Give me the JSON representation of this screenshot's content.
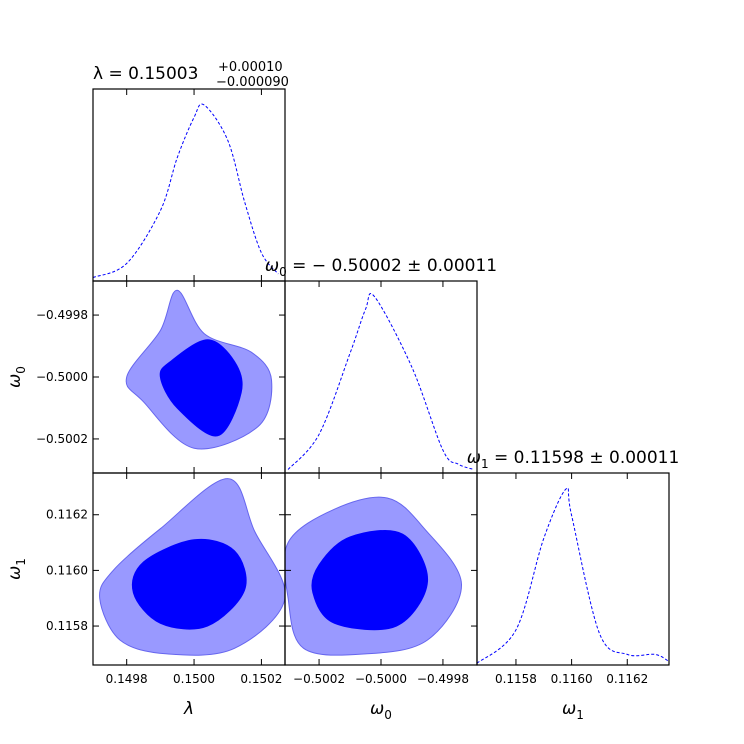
{
  "chart_data": {
    "type": "corner",
    "parameters": [
      {
        "symbol": "λ",
        "tick_labels": [
          "0.1498",
          "0.1500",
          "0.1502"
        ],
        "tick_values": [
          0.1498,
          0.15,
          0.1502
        ],
        "range": [
          0.1497,
          0.15027
        ]
      },
      {
        "symbol": "ω",
        "subscript": "0",
        "tick_labels": [
          "−0.5002",
          "−0.5000",
          "−0.4998"
        ],
        "tick_values": [
          -0.5002,
          -0.5,
          -0.4998
        ],
        "range": [
          -0.50031,
          -0.49969
        ]
      },
      {
        "symbol": "ω",
        "subscript": "1",
        "tick_labels": [
          "0.1158",
          "0.1160",
          "0.1162"
        ],
        "tick_values": [
          0.1158,
          0.116,
          0.1162
        ],
        "range": [
          0.11566,
          0.11635
        ]
      }
    ],
    "titles": [
      {
        "prefix": "λ = 0.15003",
        "sup": "+0.00010",
        "sub": "−0.000090"
      },
      {
        "prefix_symbol": "ω",
        "prefix_sub": "0",
        "text": " = − 0.50002 ± 0.00011"
      },
      {
        "prefix_symbol": "ω",
        "prefix_sub": "1",
        "text": " = 0.11598 ± 0.00011"
      }
    ],
    "marginals": [
      {
        "param": 0,
        "x": [
          0.1497,
          0.1498,
          0.1499,
          0.14995,
          0.15,
          0.15003,
          0.1501,
          0.15015,
          0.1502,
          0.15025
        ],
        "density": [
          0.02,
          0.1,
          0.4,
          0.7,
          0.93,
          1.0,
          0.8,
          0.45,
          0.16,
          0.04
        ]
      },
      {
        "param": 1,
        "x": [
          -0.5003,
          -0.5002,
          -0.5001,
          -0.50005,
          -0.50002,
          -0.4999,
          -0.4998,
          -0.49975,
          -0.4997
        ],
        "density": [
          0.02,
          0.22,
          0.68,
          0.93,
          1.0,
          0.6,
          0.13,
          0.05,
          0.02
        ]
      },
      {
        "param": 2,
        "x": [
          0.11566,
          0.1158,
          0.1159,
          0.11598,
          0.116,
          0.1161,
          0.1162,
          0.1163,
          0.11635
        ],
        "density": [
          0.01,
          0.2,
          0.72,
          1.0,
          0.85,
          0.18,
          0.06,
          0.06,
          0.02
        ]
      }
    ],
    "contours": [
      {
        "x": 0,
        "y": 1,
        "outer": [
          [
            0.1498,
            -0.5
          ],
          [
            0.1499,
            -0.49985
          ],
          [
            0.14995,
            -0.49972
          ],
          [
            0.15003,
            -0.49986
          ],
          [
            0.15017,
            -0.49992
          ],
          [
            0.15023,
            -0.50001
          ],
          [
            0.15019,
            -0.50016
          ],
          [
            0.15,
            -0.50023
          ],
          [
            0.14985,
            -0.50008
          ]
        ],
        "inner": [
          [
            0.14993,
            -0.49995
          ],
          [
            0.15004,
            -0.49988
          ],
          [
            0.15012,
            -0.49995
          ],
          [
            0.15014,
            -0.50005
          ],
          [
            0.15007,
            -0.50019
          ],
          [
            0.14995,
            -0.5001
          ],
          [
            0.1499,
            -0.5
          ]
        ]
      },
      {
        "x": 0,
        "y": 2,
        "outer": [
          [
            0.14976,
            0.116
          ],
          [
            0.1499,
            0.11615
          ],
          [
            0.1501,
            0.11633
          ],
          [
            0.15018,
            0.11614
          ],
          [
            0.15027,
            0.1159
          ],
          [
            0.15012,
            0.11572
          ],
          [
            0.14992,
            0.1157
          ],
          [
            0.14978,
            0.11575
          ],
          [
            0.14972,
            0.1159
          ]
        ],
        "inner": [
          [
            0.14985,
            0.11603
          ],
          [
            0.15,
            0.11611
          ],
          [
            0.15012,
            0.11607
          ],
          [
            0.15015,
            0.11593
          ],
          [
            0.15004,
            0.1158
          ],
          [
            0.1499,
            0.11581
          ],
          [
            0.14982,
            0.11592
          ]
        ]
      },
      {
        "x": 1,
        "y": 2,
        "outer": [
          [
            -0.5003,
            0.1161
          ],
          [
            -0.50015,
            0.11622
          ],
          [
            -0.49998,
            0.11626
          ],
          [
            -0.49986,
            0.11615
          ],
          [
            -0.49974,
            0.11595
          ],
          [
            -0.49985,
            0.11575
          ],
          [
            -0.50005,
            0.1157
          ],
          [
            -0.50025,
            0.11572
          ],
          [
            -0.5003,
            0.1159
          ]
        ],
        "inner": [
          [
            -0.5002,
            0.11602
          ],
          [
            -0.5001,
            0.11612
          ],
          [
            -0.49993,
            0.11613
          ],
          [
            -0.49985,
            0.11596
          ],
          [
            -0.49995,
            0.1158
          ],
          [
            -0.50015,
            0.11581
          ],
          [
            -0.50022,
            0.11592
          ]
        ]
      }
    ],
    "colors": {
      "line": "#0000ff",
      "inner_fill": "#0000ff",
      "outer_fill": "#9999ff",
      "outer_stroke": "#6666ee"
    }
  }
}
